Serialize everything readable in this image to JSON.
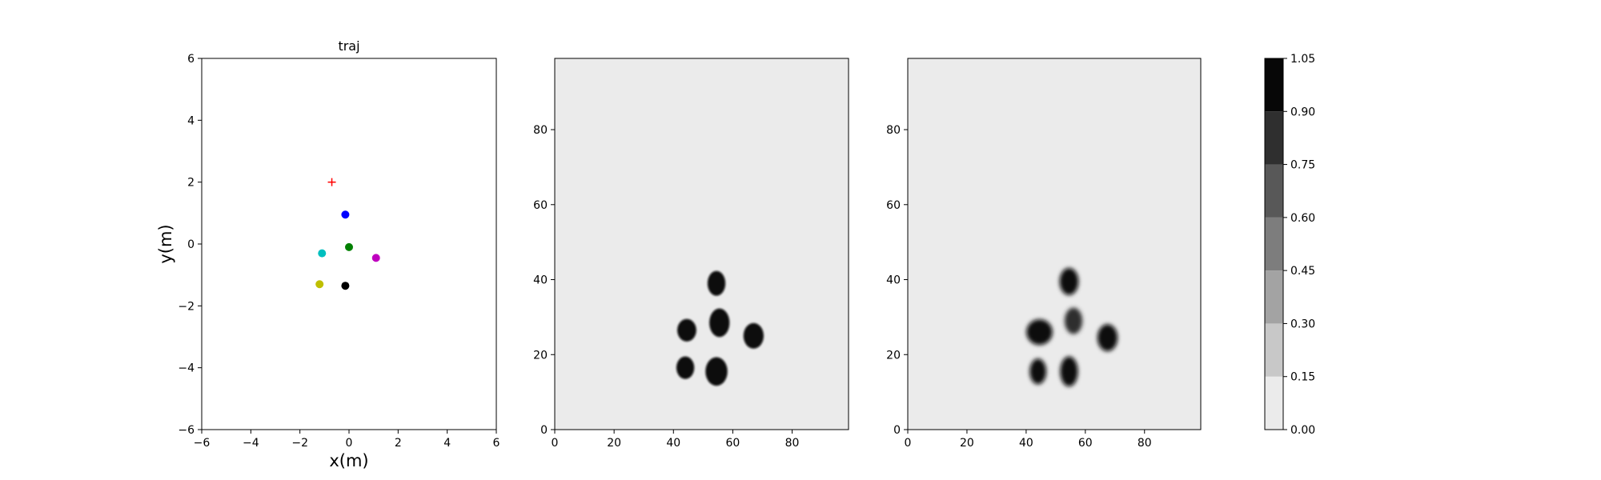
{
  "chart_data": [
    {
      "type": "scatter",
      "title": "traj",
      "xlabel": "x(m)",
      "ylabel": "y(m)",
      "xlim": [
        -6,
        6
      ],
      "ylim": [
        -6,
        6
      ],
      "xticks": [
        -6,
        -4,
        -2,
        0,
        2,
        4,
        6
      ],
      "yticks": [
        -6,
        -4,
        -2,
        0,
        2,
        4,
        6
      ],
      "grid": false,
      "target": {
        "x": -0.7,
        "y": 2.0,
        "marker": "+",
        "color": "#ff0000"
      },
      "points": [
        {
          "x": -0.15,
          "y": 0.95,
          "color": "#0000ff"
        },
        {
          "x": -1.1,
          "y": -0.3,
          "color": "#00bfbf"
        },
        {
          "x": 0.0,
          "y": -0.1,
          "color": "#008000"
        },
        {
          "x": 1.1,
          "y": -0.45,
          "color": "#bf00bf"
        },
        {
          "x": -1.2,
          "y": -1.3,
          "color": "#bfbf00"
        },
        {
          "x": -0.15,
          "y": -1.35,
          "color": "#000000"
        }
      ]
    },
    {
      "type": "heatmap",
      "title": "",
      "xlim": [
        0,
        99
      ],
      "ylim": [
        0,
        99
      ],
      "xticks": [
        0,
        20,
        40,
        60,
        80
      ],
      "yticks": [
        0,
        20,
        40,
        60,
        80
      ],
      "background": "#ebebeb",
      "blobs": [
        {
          "x": 54.5,
          "y": 39,
          "rx": 3.0,
          "ry": 3.3,
          "value": 1.0
        },
        {
          "x": 44.5,
          "y": 26.5,
          "rx": 3.2,
          "ry": 3.0,
          "value": 1.0
        },
        {
          "x": 55.5,
          "y": 28.5,
          "rx": 3.4,
          "ry": 3.8,
          "value": 1.0
        },
        {
          "x": 67,
          "y": 25,
          "rx": 3.4,
          "ry": 3.4,
          "value": 1.0
        },
        {
          "x": 44,
          "y": 16.5,
          "rx": 3.0,
          "ry": 3.0,
          "value": 1.0
        },
        {
          "x": 54.5,
          "y": 15.5,
          "rx": 3.7,
          "ry": 3.8,
          "value": 1.0
        }
      ]
    },
    {
      "type": "heatmap",
      "title": "",
      "xlim": [
        0,
        99
      ],
      "ylim": [
        0,
        99
      ],
      "xticks": [
        0,
        20,
        40,
        60,
        80
      ],
      "yticks": [
        0,
        20,
        40,
        60,
        80
      ],
      "background": "#ebebeb",
      "blobs": [
        {
          "x": 54.5,
          "y": 39.5,
          "rx": 3.2,
          "ry": 3.6,
          "value": 1.0
        },
        {
          "x": 44.5,
          "y": 26,
          "rx": 4.4,
          "ry": 3.4,
          "value": 1.0
        },
        {
          "x": 56,
          "y": 29,
          "rx": 3.0,
          "ry": 3.5,
          "value": 0.85
        },
        {
          "x": 67.5,
          "y": 24.5,
          "rx": 3.4,
          "ry": 3.6,
          "value": 0.95
        },
        {
          "x": 44,
          "y": 15.5,
          "rx": 2.8,
          "ry": 3.4,
          "value": 1.0
        },
        {
          "x": 54.5,
          "y": 15.5,
          "rx": 3.0,
          "ry": 4.0,
          "value": 1.0
        }
      ]
    },
    {
      "type": "colorbar",
      "levels": [
        0.0,
        0.15,
        0.3,
        0.45,
        0.6,
        0.75,
        0.9,
        1.05
      ],
      "tick_labels": [
        "0.00",
        "0.15",
        "0.30",
        "0.45",
        "0.60",
        "0.75",
        "0.90",
        "1.05"
      ],
      "colors": [
        "#ebebeb",
        "#c8c8c8",
        "#a3a3a3",
        "#7d7d7d",
        "#585858",
        "#2f2f2f",
        "#070707"
      ]
    }
  ]
}
